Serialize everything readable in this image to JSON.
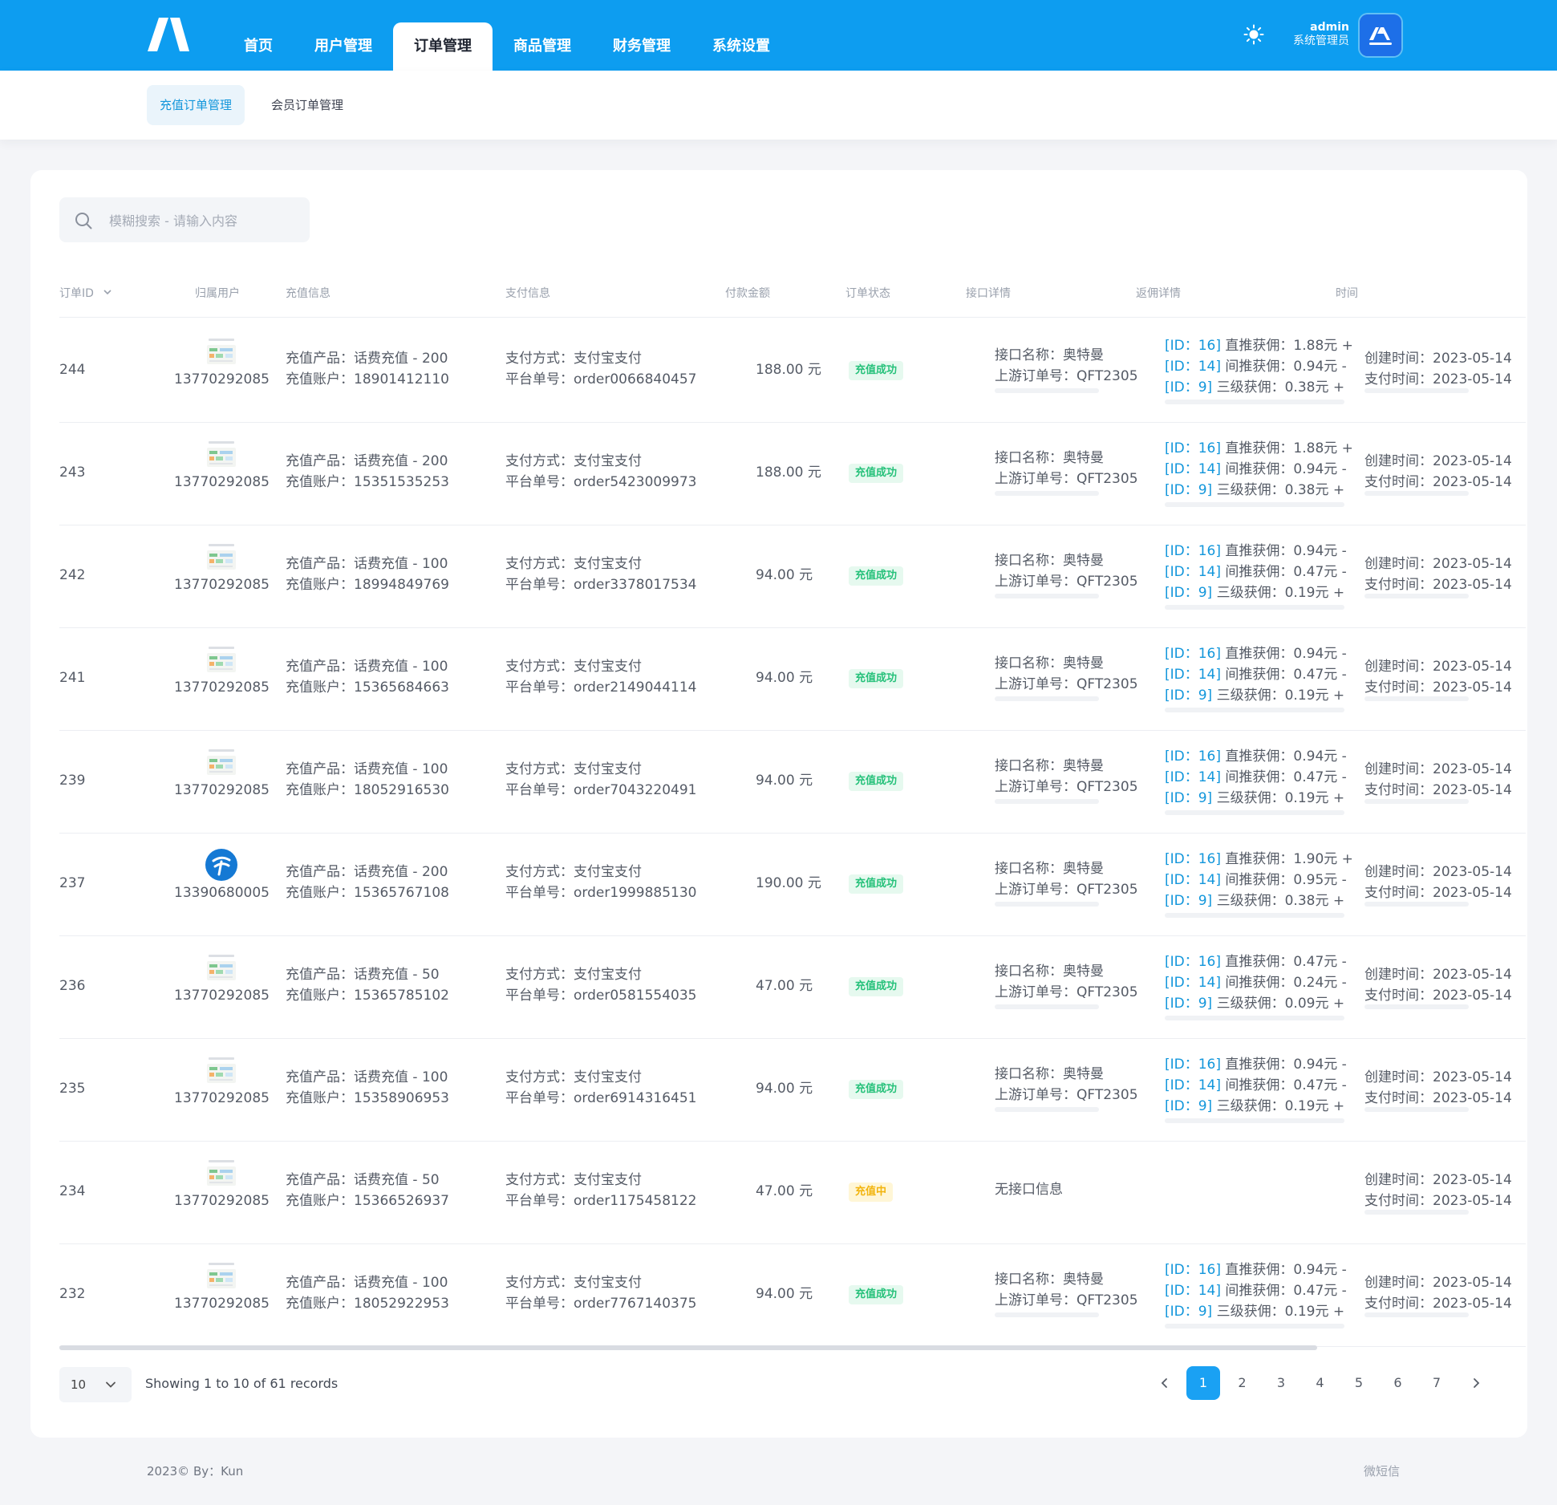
{
  "header": {
    "nav": [
      "首页",
      "用户管理",
      "订单管理",
      "商品管理",
      "财务管理",
      "系统设置"
    ],
    "active_nav": "订单管理",
    "user_name": "admin",
    "user_role": "系统管理员",
    "accent_color": "#0d9df0"
  },
  "subnav": {
    "tabs": [
      "充值订单管理",
      "会员订单管理"
    ],
    "active_tab": "充值订单管理"
  },
  "search": {
    "placeholder": "模糊搜索 - 请输入内容"
  },
  "table": {
    "columns": [
      "订单ID",
      "归属用户",
      "充值信息",
      "支付信息",
      "付款金额",
      "订单状态",
      "接口详情",
      "返佣详情",
      "时间"
    ],
    "rows": [
      {
        "id": "244",
        "user": "13770292085",
        "icon": "product-thumbnail",
        "product": "充值产品：话费充值 - 200",
        "account": "充值账户：18901412110",
        "pay_method": "支付方式：支付宝支付",
        "order_no": "平台单号：order0066840457",
        "amount": "188.00 元",
        "status": "充值成功",
        "status_type": "ok",
        "api_name": "接口名称：奥特曼",
        "api_order": "上游订单号：QFT2305",
        "c1": [
          "[ID：16]",
          "直推获佣：1.88元 +"
        ],
        "c2": [
          "[ID：14]",
          "间推获佣：0.94元 -"
        ],
        "c3": [
          "[ID：9]",
          "三级获佣：0.38元 +"
        ],
        "created": "创建时间：2023-05-14",
        "paid": "支付时间：2023-05-14"
      },
      {
        "id": "243",
        "user": "13770292085",
        "icon": "product-thumbnail",
        "product": "充值产品：话费充值 - 200",
        "account": "充值账户：15351535253",
        "pay_method": "支付方式：支付宝支付",
        "order_no": "平台单号：order5423009973",
        "amount": "188.00 元",
        "status": "充值成功",
        "status_type": "ok",
        "api_name": "接口名称：奥特曼",
        "api_order": "上游订单号：QFT2305",
        "c1": [
          "[ID：16]",
          "直推获佣：1.88元 +"
        ],
        "c2": [
          "[ID：14]",
          "间推获佣：0.94元 -"
        ],
        "c3": [
          "[ID：9]",
          "三级获佣：0.38元 +"
        ],
        "created": "创建时间：2023-05-14",
        "paid": "支付时间：2023-05-14"
      },
      {
        "id": "242",
        "user": "13770292085",
        "icon": "product-thumbnail",
        "product": "充值产品：话费充值 - 100",
        "account": "充值账户：18994849769",
        "pay_method": "支付方式：支付宝支付",
        "order_no": "平台单号：order3378017534",
        "amount": "94.00 元",
        "status": "充值成功",
        "status_type": "ok",
        "api_name": "接口名称：奥特曼",
        "api_order": "上游订单号：QFT2305",
        "c1": [
          "[ID：16]",
          "直推获佣：0.94元 -"
        ],
        "c2": [
          "[ID：14]",
          "间推获佣：0.47元 -"
        ],
        "c3": [
          "[ID：9]",
          "三级获佣：0.19元 +"
        ],
        "created": "创建时间：2023-05-14",
        "paid": "支付时间：2023-05-14"
      },
      {
        "id": "241",
        "user": "13770292085",
        "icon": "product-thumbnail",
        "product": "充值产品：话费充值 - 100",
        "account": "充值账户：15365684663",
        "pay_method": "支付方式：支付宝支付",
        "order_no": "平台单号：order2149044114",
        "amount": "94.00 元",
        "status": "充值成功",
        "status_type": "ok",
        "api_name": "接口名称：奥特曼",
        "api_order": "上游订单号：QFT2305",
        "c1": [
          "[ID：16]",
          "直推获佣：0.94元 -"
        ],
        "c2": [
          "[ID：14]",
          "间推获佣：0.47元 -"
        ],
        "c3": [
          "[ID：9]",
          "三级获佣：0.19元 +"
        ],
        "created": "创建时间：2023-05-14",
        "paid": "支付时间：2023-05-14"
      },
      {
        "id": "239",
        "user": "13770292085",
        "icon": "product-thumbnail",
        "product": "充值产品：话费充值 - 100",
        "account": "充值账户：18052916530",
        "pay_method": "支付方式：支付宝支付",
        "order_no": "平台单号：order7043220491",
        "amount": "94.00 元",
        "status": "充值成功",
        "status_type": "ok",
        "api_name": "接口名称：奥特曼",
        "api_order": "上游订单号：QFT2305",
        "c1": [
          "[ID：16]",
          "直推获佣：0.94元 -"
        ],
        "c2": [
          "[ID：14]",
          "间推获佣：0.47元 -"
        ],
        "c3": [
          "[ID：9]",
          "三级获佣：0.19元 +"
        ],
        "created": "创建时间：2023-05-14",
        "paid": "支付时间：2023-05-14"
      },
      {
        "id": "237",
        "user": "13390680005",
        "icon": "telecom-logo",
        "product": "充值产品：话费充值 - 200",
        "account": "充值账户：15365767108",
        "pay_method": "支付方式：支付宝支付",
        "order_no": "平台单号：order1999885130",
        "amount": "190.00 元",
        "status": "充值成功",
        "status_type": "ok",
        "api_name": "接口名称：奥特曼",
        "api_order": "上游订单号：QFT2305",
        "c1": [
          "[ID：16]",
          "直推获佣：1.90元 +"
        ],
        "c2": [
          "[ID：14]",
          "间推获佣：0.95元 -"
        ],
        "c3": [
          "[ID：9]",
          "三级获佣：0.38元 +"
        ],
        "created": "创建时间：2023-05-14",
        "paid": "支付时间：2023-05-14"
      },
      {
        "id": "236",
        "user": "13770292085",
        "icon": "product-thumbnail",
        "product": "充值产品：话费充值 - 50",
        "account": "充值账户：15365785102",
        "pay_method": "支付方式：支付宝支付",
        "order_no": "平台单号：order0581554035",
        "amount": "47.00 元",
        "status": "充值成功",
        "status_type": "ok",
        "api_name": "接口名称：奥特曼",
        "api_order": "上游订单号：QFT2305",
        "c1": [
          "[ID：16]",
          "直推获佣：0.47元 -"
        ],
        "c2": [
          "[ID：14]",
          "间推获佣：0.24元 -"
        ],
        "c3": [
          "[ID：9]",
          "三级获佣：0.09元 +"
        ],
        "created": "创建时间：2023-05-14",
        "paid": "支付时间：2023-05-14"
      },
      {
        "id": "235",
        "user": "13770292085",
        "icon": "product-thumbnail",
        "product": "充值产品：话费充值 - 100",
        "account": "充值账户：15358906953",
        "pay_method": "支付方式：支付宝支付",
        "order_no": "平台单号：order6914316451",
        "amount": "94.00 元",
        "status": "充值成功",
        "status_type": "ok",
        "api_name": "接口名称：奥特曼",
        "api_order": "上游订单号：QFT2305",
        "c1": [
          "[ID：16]",
          "直推获佣：0.94元 -"
        ],
        "c2": [
          "[ID：14]",
          "间推获佣：0.47元 -"
        ],
        "c3": [
          "[ID：9]",
          "三级获佣：0.19元 +"
        ],
        "created": "创建时间：2023-05-14",
        "paid": "支付时间：2023-05-14"
      },
      {
        "id": "234",
        "user": "13770292085",
        "icon": "product-thumbnail",
        "product": "充值产品：话费充值 - 50",
        "account": "充值账户：15366526937",
        "pay_method": "支付方式：支付宝支付",
        "order_no": "平台单号：order1175458122",
        "amount": "47.00 元",
        "status": "充值中",
        "status_type": "wait",
        "no_api": "无接口信息",
        "created": "创建时间：2023-05-14",
        "paid": "支付时间：2023-05-14"
      },
      {
        "id": "232",
        "user": "13770292085",
        "icon": "product-thumbnail",
        "product": "充值产品：话费充值 - 100",
        "account": "充值账户：18052922953",
        "pay_method": "支付方式：支付宝支付",
        "order_no": "平台单号：order7767140375",
        "amount": "94.00 元",
        "status": "充值成功",
        "status_type": "ok",
        "api_name": "接口名称：奥特曼",
        "api_order": "上游订单号：QFT2305",
        "c1": [
          "[ID：16]",
          "直推获佣：0.94元 -"
        ],
        "c2": [
          "[ID：14]",
          "间推获佣：0.47元 -"
        ],
        "c3": [
          "[ID：9]",
          "三级获佣：0.19元 +"
        ],
        "created": "创建时间：2023-05-14",
        "paid": "支付时间：2023-05-14"
      }
    ]
  },
  "pagination": {
    "page_size": "10",
    "showing": "Showing 1 to 10 of 61 records",
    "pages": [
      "1",
      "2",
      "3",
      "4",
      "5",
      "6",
      "7"
    ],
    "active_page": "1"
  },
  "footer": {
    "left": "2023© By：Kun",
    "right": "微短信"
  }
}
